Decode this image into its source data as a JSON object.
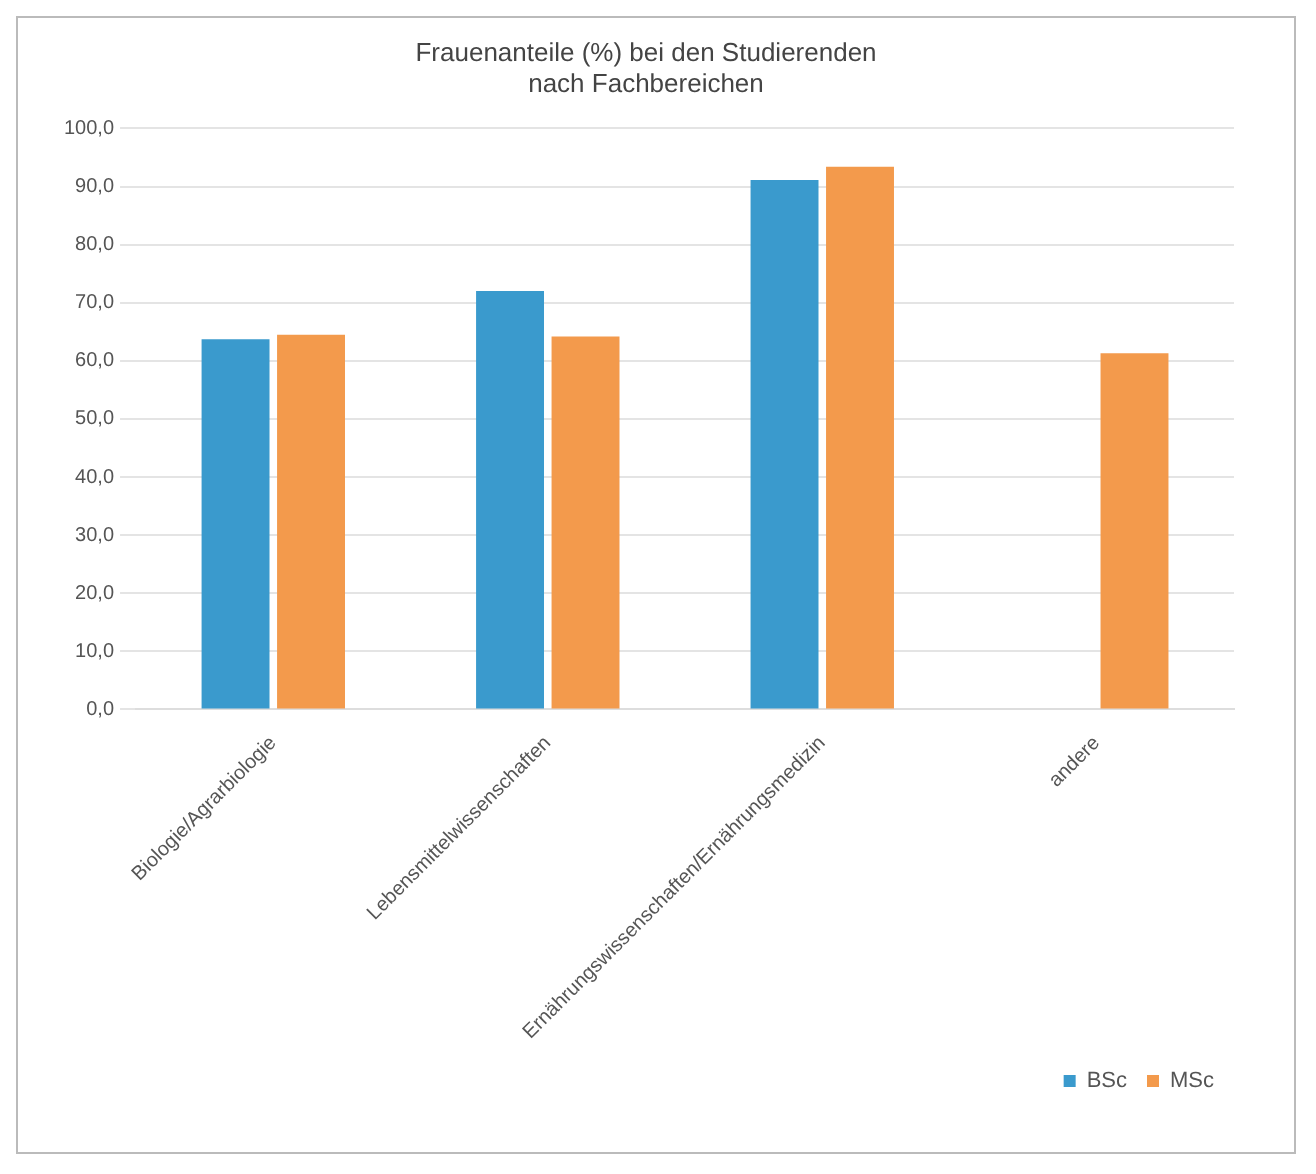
{
  "chart_data": {
    "type": "bar",
    "title": "Frauenanteile (%) bei den Studierenden\nnach Fachbereichen",
    "categories": [
      "Biologie/Agrarbiologie",
      "Lebensmittelwissenschaften",
      "Ernährungswissenschaften/Ernährungsmedizin",
      "andere"
    ],
    "series": [
      {
        "name": "BSc",
        "color": "#3a9acd",
        "values": [
          63.7,
          72.0,
          91.1,
          null
        ]
      },
      {
        "name": "MSc",
        "color": "#f39a4c",
        "values": [
          64.5,
          64.2,
          93.4,
          61.3
        ]
      }
    ],
    "ylim": [
      0,
      100
    ],
    "yticks": [
      {
        "value": 0,
        "label": "0,0"
      },
      {
        "value": 10,
        "label": "10,0"
      },
      {
        "value": 20,
        "label": "20,0"
      },
      {
        "value": 30,
        "label": "30,0"
      },
      {
        "value": 40,
        "label": "40,0"
      },
      {
        "value": 50,
        "label": "50,0"
      },
      {
        "value": 60,
        "label": "60,0"
      },
      {
        "value": 70,
        "label": "70,0"
      },
      {
        "value": 80,
        "label": "80,0"
      },
      {
        "value": 90,
        "label": "90,0"
      },
      {
        "value": 100,
        "label": "100,0"
      }
    ],
    "grid": "y",
    "legend": "bottom right"
  }
}
